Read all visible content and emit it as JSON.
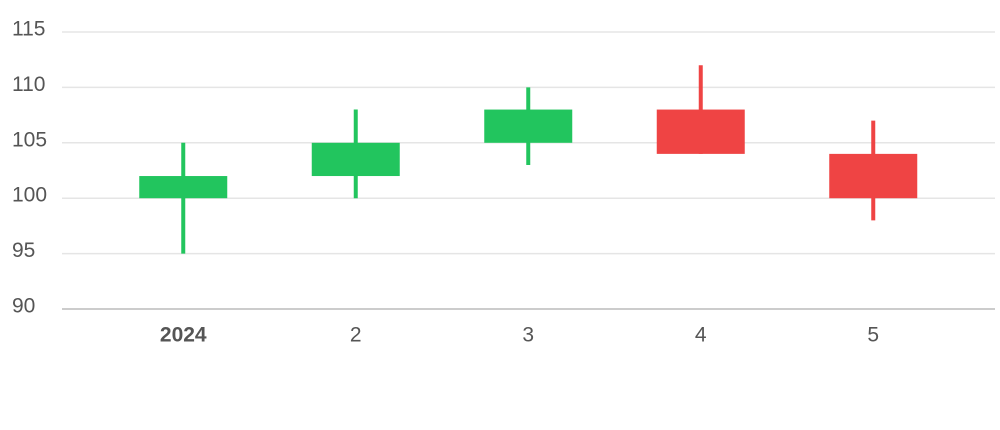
{
  "chart_data": {
    "type": "candlestick",
    "categories": [
      "2024",
      "2",
      "3",
      "4",
      "5"
    ],
    "open": [
      100,
      102,
      105,
      108,
      104
    ],
    "high": [
      105,
      108,
      110,
      112,
      107
    ],
    "low": [
      95,
      100,
      103,
      104,
      98
    ],
    "close": [
      102,
      105,
      108,
      104,
      100
    ],
    "up_color": "#22c55e",
    "down_color": "#ef4444",
    "ylim": [
      90,
      115
    ],
    "yticks": [
      90,
      95,
      100,
      105,
      110,
      115
    ],
    "grid": true
  }
}
